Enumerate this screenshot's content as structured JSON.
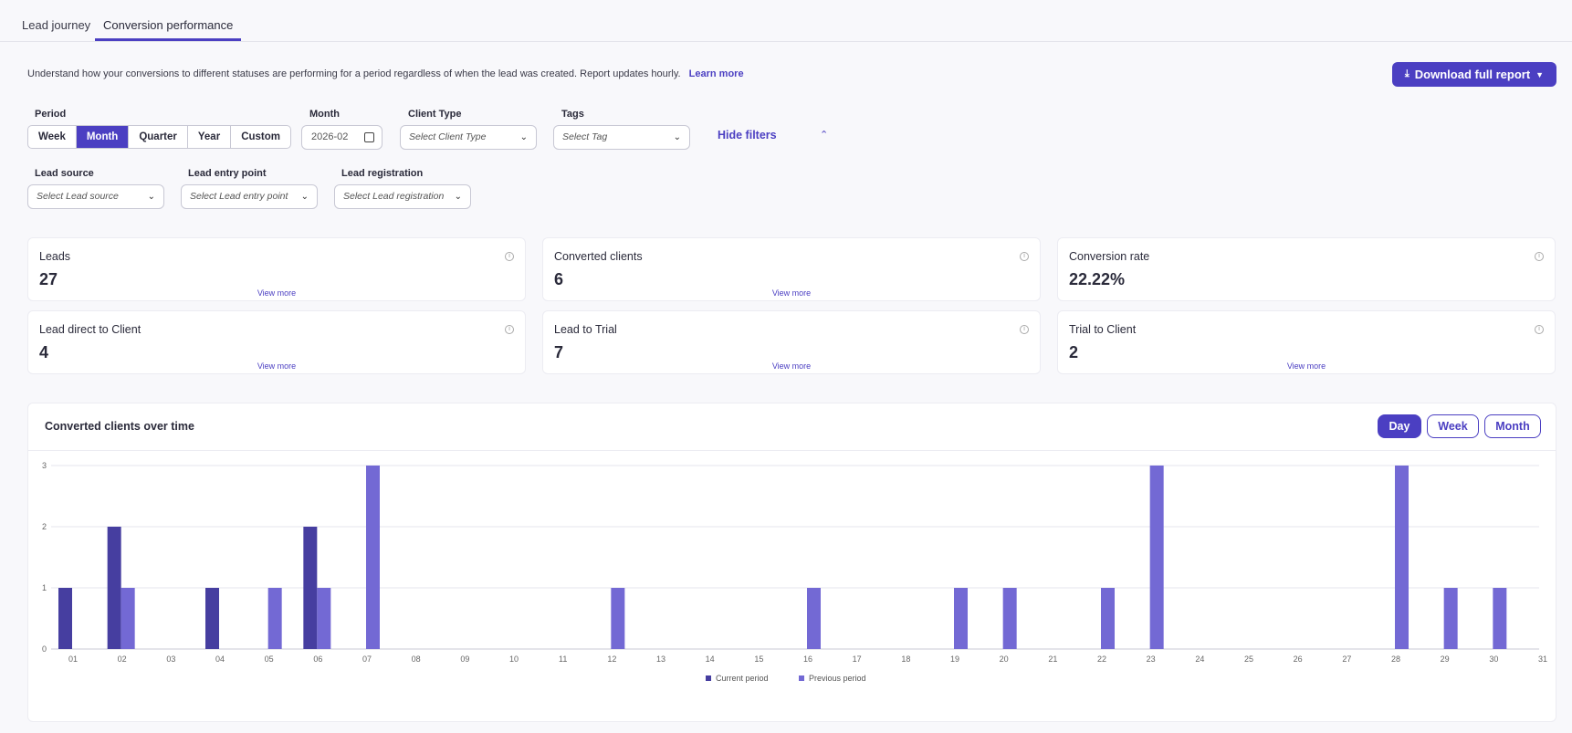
{
  "tabs": [
    {
      "label": "Lead journey",
      "active": false
    },
    {
      "label": "Conversion performance",
      "active": true
    }
  ],
  "description": "Understand how your conversions to different statuses are performing for a period regardless of when the lead was created. Report updates hourly.",
  "learn_more": "Learn more",
  "download_label": "Download full report",
  "filters": {
    "period_label": "Period",
    "period_options": [
      "Week",
      "Month",
      "Quarter",
      "Year",
      "Custom"
    ],
    "period_selected": "Month",
    "month_label": "Month",
    "month_value": "2026-02",
    "client_type_label": "Client Type",
    "client_type_placeholder": "Select Client Type",
    "tags_label": "Tags",
    "tags_placeholder": "Select Tag",
    "hide_filters": "Hide filters",
    "lead_source_label": "Lead source",
    "lead_source_placeholder": "Select Lead source",
    "lead_entry_label": "Lead entry point",
    "lead_entry_placeholder": "Select Lead entry point",
    "lead_registration_label": "Lead registration",
    "lead_registration_placeholder": "Select Lead registration"
  },
  "metrics": [
    {
      "title": "Leads",
      "value": "27",
      "view_more": "View more"
    },
    {
      "title": "Converted clients",
      "value": "6",
      "view_more": "View more"
    },
    {
      "title": "Conversion rate",
      "value": "22.22%",
      "view_more": ""
    },
    {
      "title": "Lead direct to Client",
      "value": "4",
      "view_more": "View more"
    },
    {
      "title": "Lead to Trial",
      "value": "7",
      "view_more": "View more"
    },
    {
      "title": "Trial to Client",
      "value": "2",
      "view_more": "View more"
    }
  ],
  "chart_section": {
    "title": "Converted clients over time",
    "granularity_options": [
      "Day",
      "Week",
      "Month"
    ],
    "granularity_selected": "Day"
  },
  "colors": {
    "accent": "#4b3fc2",
    "current": "#463ea0",
    "previous": "#7369d4"
  },
  "chart_data": {
    "type": "bar",
    "title": "Converted clients over time",
    "categories": [
      "01",
      "02",
      "03",
      "04",
      "05",
      "06",
      "07",
      "08",
      "09",
      "10",
      "11",
      "12",
      "13",
      "14",
      "15",
      "16",
      "17",
      "18",
      "19",
      "20",
      "21",
      "22",
      "23",
      "24",
      "25",
      "26",
      "27",
      "28",
      "29",
      "30",
      "31"
    ],
    "series": [
      {
        "name": "Current period",
        "values": [
          1,
          2,
          0,
          1,
          0,
          2,
          0,
          0,
          0,
          0,
          0,
          0,
          0,
          0,
          0,
          0,
          0,
          0,
          0,
          0,
          0,
          0,
          0,
          0,
          0,
          0,
          0,
          0,
          0,
          0,
          0
        ]
      },
      {
        "name": "Previous period",
        "values": [
          0,
          1,
          0,
          0,
          1,
          1,
          3,
          0,
          0,
          0,
          0,
          1,
          0,
          0,
          0,
          1,
          0,
          0,
          1,
          1,
          0,
          1,
          3,
          0,
          0,
          0,
          0,
          3,
          1,
          1,
          0
        ]
      }
    ],
    "yticks": [
      0,
      1,
      2,
      3
    ],
    "ylim": [
      0,
      3
    ],
    "grid": true,
    "legend": "bottom-center"
  }
}
